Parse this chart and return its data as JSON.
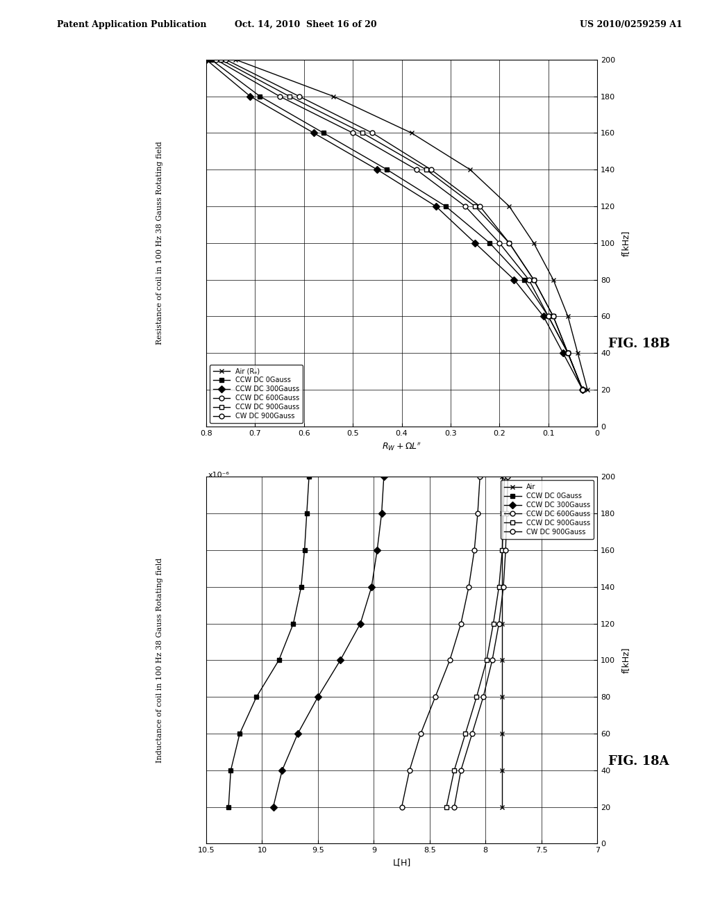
{
  "header_left": "Patent Application Publication",
  "header_mid": "Oct. 14, 2010  Sheet 16 of 20",
  "header_right": "US 2010/0259259 A1",
  "fig18B": {
    "title": "FIG. 18B",
    "ylabel_rotated": "Resistance of coil in 100 Hz 38 Gauss Rotating field",
    "xlabel": "$R_W + \\Omega L''$",
    "ylabel": "f[kHz]",
    "xlim_reversed": [
      0.8,
      0.0
    ],
    "ylim": [
      0,
      200
    ],
    "xticks": [
      0.8,
      0.7,
      0.6,
      0.5,
      0.4,
      0.3,
      0.2,
      0.1,
      0.0
    ],
    "xticklabels": [
      "0.8",
      "0.7",
      "0.6",
      "0.5",
      "0.4",
      "0.3",
      "0.2",
      "0.1",
      "0"
    ],
    "yticks": [
      0,
      20,
      40,
      60,
      80,
      100,
      120,
      140,
      160,
      180,
      200
    ],
    "series": [
      {
        "label": "Air (Rₑ)",
        "marker": "x",
        "fillstyle": "full",
        "color": "#000000",
        "linestyle": "-",
        "f": [
          20,
          40,
          60,
          80,
          100,
          120,
          140,
          160,
          180,
          200
        ],
        "v": [
          0.02,
          0.04,
          0.06,
          0.09,
          0.13,
          0.18,
          0.26,
          0.38,
          0.54,
          0.74
        ]
      },
      {
        "label": "CCW DC 0Gauss",
        "marker": "s",
        "fillstyle": "full",
        "color": "#000000",
        "linestyle": "-",
        "f": [
          20,
          40,
          60,
          80,
          100,
          120,
          140,
          160,
          180,
          200
        ],
        "v": [
          0.03,
          0.06,
          0.1,
          0.15,
          0.22,
          0.31,
          0.43,
          0.56,
          0.69,
          0.79
        ]
      },
      {
        "label": "CCW DC 300Gauss",
        "marker": "D",
        "fillstyle": "full",
        "color": "#000000",
        "linestyle": "-",
        "f": [
          20,
          40,
          60,
          80,
          100,
          120,
          140,
          160,
          180,
          200
        ],
        "v": [
          0.03,
          0.07,
          0.11,
          0.17,
          0.25,
          0.33,
          0.45,
          0.58,
          0.71,
          0.8
        ]
      },
      {
        "label": "CCW DC 600Gauss",
        "marker": "o",
        "fillstyle": "none",
        "color": "#000000",
        "linestyle": "-",
        "f": [
          20,
          40,
          60,
          80,
          100,
          120,
          140,
          160,
          180,
          200
        ],
        "v": [
          0.03,
          0.06,
          0.1,
          0.14,
          0.2,
          0.27,
          0.37,
          0.5,
          0.65,
          0.78
        ]
      },
      {
        "label": "CCW DC 900Gauss",
        "marker": "s",
        "fillstyle": "none",
        "color": "#000000",
        "linestyle": "-",
        "f": [
          20,
          40,
          60,
          80,
          100,
          120,
          140,
          160,
          180,
          200
        ],
        "v": [
          0.03,
          0.06,
          0.09,
          0.13,
          0.18,
          0.25,
          0.35,
          0.48,
          0.63,
          0.77
        ]
      },
      {
        "label": "CW DC 900Gauss",
        "marker": "o",
        "fillstyle": "none",
        "color": "#000000",
        "linestyle": "-",
        "f": [
          20,
          40,
          60,
          80,
          100,
          120,
          140,
          160,
          180,
          200
        ],
        "v": [
          0.03,
          0.06,
          0.09,
          0.13,
          0.18,
          0.24,
          0.34,
          0.46,
          0.61,
          0.76
        ]
      }
    ]
  },
  "fig18A": {
    "title": "FIG. 18A",
    "ylabel_rotated": "Inductance of coil in 100 Hz 38 Gauss Rotating field",
    "xlabel": "L[H]",
    "ylabel": "f[kHz]",
    "scale_label": "x10⁻⁶",
    "xlim_reversed": [
      10.5,
      7.0
    ],
    "ylim": [
      0,
      200
    ],
    "xticks": [
      10.5,
      10.0,
      9.5,
      9.0,
      8.5,
      8.0,
      7.5,
      7.0
    ],
    "xticklabels": [
      "10.5",
      "10",
      "9.5",
      "9",
      "8.5",
      "8",
      "7.5",
      "7"
    ],
    "yticks": [
      0,
      20,
      40,
      60,
      80,
      100,
      120,
      140,
      160,
      180,
      200
    ],
    "series": [
      {
        "label": "Air",
        "marker": "x",
        "fillstyle": "full",
        "color": "#000000",
        "linestyle": "-",
        "f": [
          20,
          40,
          60,
          80,
          100,
          120,
          140,
          160,
          180,
          200
        ],
        "v": [
          7.85,
          7.85,
          7.85,
          7.85,
          7.85,
          7.85,
          7.85,
          7.85,
          7.85,
          7.85
        ]
      },
      {
        "label": "CCW DC 0Gauss",
        "marker": "s",
        "fillstyle": "full",
        "color": "#000000",
        "linestyle": "-",
        "f": [
          20,
          40,
          60,
          80,
          100,
          120,
          140,
          160,
          180,
          200
        ],
        "v": [
          10.3,
          10.28,
          10.2,
          10.05,
          9.85,
          9.72,
          9.65,
          9.62,
          9.6,
          9.58
        ]
      },
      {
        "label": "CCW DC 300Gauss",
        "marker": "D",
        "fillstyle": "full",
        "color": "#000000",
        "linestyle": "-",
        "f": [
          20,
          40,
          60,
          80,
          100,
          120,
          140,
          160,
          180,
          200
        ],
        "v": [
          9.9,
          9.82,
          9.68,
          9.5,
          9.3,
          9.12,
          9.02,
          8.97,
          8.93,
          8.91
        ]
      },
      {
        "label": "CCW DC 600Gauss",
        "marker": "o",
        "fillstyle": "none",
        "color": "#000000",
        "linestyle": "-",
        "f": [
          20,
          40,
          60,
          80,
          100,
          120,
          140,
          160,
          180,
          200
        ],
        "v": [
          8.75,
          8.68,
          8.58,
          8.45,
          8.32,
          8.22,
          8.15,
          8.1,
          8.07,
          8.05
        ]
      },
      {
        "label": "CCW DC 900Gauss",
        "marker": "s",
        "fillstyle": "none",
        "color": "#000000",
        "linestyle": "-",
        "f": [
          20,
          40,
          60,
          80,
          100,
          120,
          140,
          160,
          180,
          200
        ],
        "v": [
          8.35,
          8.28,
          8.18,
          8.08,
          7.99,
          7.93,
          7.88,
          7.85,
          7.84,
          7.83
        ]
      },
      {
        "label": "CW DC 900Gauss",
        "marker": "o",
        "fillstyle": "none",
        "color": "#000000",
        "linestyle": "-",
        "f": [
          20,
          40,
          60,
          80,
          100,
          120,
          140,
          160,
          180,
          200
        ],
        "v": [
          8.28,
          8.22,
          8.12,
          8.02,
          7.94,
          7.88,
          7.84,
          7.82,
          7.81,
          7.8
        ]
      }
    ]
  }
}
